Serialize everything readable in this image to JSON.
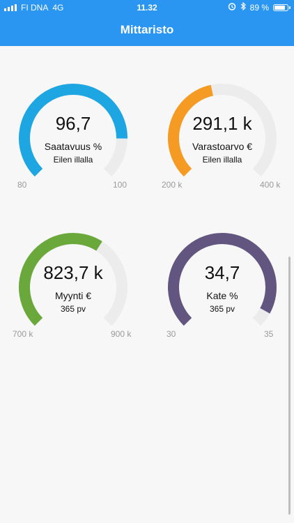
{
  "status_bar": {
    "carrier": "FI DNA",
    "network": "4G",
    "time": "11.32",
    "battery": "89 %",
    "battery_level": 0.89
  },
  "header": {
    "title": "Mittaristo"
  },
  "gauges": [
    {
      "value": "96,7",
      "label": "Saatavuus %",
      "sub": "Eilen illalla",
      "min": "80",
      "max": "100",
      "fraction": 0.835,
      "color": "#1ea6e3"
    },
    {
      "value": "291,1 k",
      "label": "Varastoarvo €",
      "sub": "Eilen illalla",
      "min": "200 k",
      "max": "400 k",
      "fraction": 0.455,
      "color": "#f59a23"
    },
    {
      "value": "823,7 k",
      "label": "Myynti €",
      "sub": "365 pv",
      "min": "700 k",
      "max": "900 k",
      "fraction": 0.62,
      "color": "#6aa83b"
    },
    {
      "value": "34,7",
      "label": "Kate %",
      "sub": "365 pv",
      "min": "30",
      "max": "35",
      "fraction": 0.94,
      "color": "#625680"
    }
  ]
}
